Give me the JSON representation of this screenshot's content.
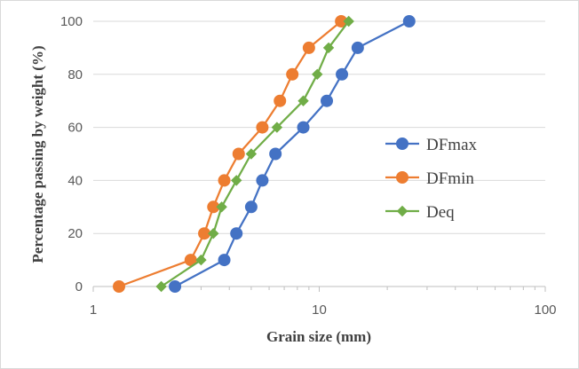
{
  "chart_data": {
    "type": "scatter",
    "x_scale": "log",
    "title": "",
    "xlabel": "Grain size (mm)",
    "ylabel": "Percentage passing by weight (%)",
    "xlim": [
      1,
      100
    ],
    "ylim": [
      0,
      100
    ],
    "x_ticks": [
      1,
      10,
      100
    ],
    "x_tick_labels": [
      "1",
      "10",
      "100"
    ],
    "y_ticks": [
      0,
      20,
      40,
      60,
      80,
      100
    ],
    "y_tick_labels": [
      "0",
      "20",
      "40",
      "60",
      "80",
      "100"
    ],
    "grid": "horizontal",
    "legend_position": "right",
    "series": [
      {
        "name": "DFmax",
        "color": "#4472C4",
        "marker": "circle",
        "x": [
          2.3,
          3.8,
          4.3,
          5.0,
          5.6,
          6.4,
          8.5,
          10.8,
          12.6,
          14.8,
          25.0
        ],
        "y": [
          0,
          10,
          20,
          30,
          40,
          50,
          60,
          70,
          80,
          90,
          100
        ]
      },
      {
        "name": "DFmin",
        "color": "#ED7D31",
        "marker": "circle",
        "x": [
          1.3,
          2.7,
          3.1,
          3.4,
          3.8,
          4.4,
          5.6,
          6.7,
          7.6,
          9.0,
          12.5
        ],
        "y": [
          0,
          10,
          20,
          30,
          40,
          50,
          60,
          70,
          80,
          90,
          100
        ]
      },
      {
        "name": "Deq",
        "color": "#70AD47",
        "marker": "diamond",
        "x": [
          2.0,
          3.0,
          3.4,
          3.7,
          4.3,
          5.0,
          6.5,
          8.5,
          9.8,
          11.0,
          13.5
        ],
        "y": [
          0,
          10,
          20,
          30,
          40,
          50,
          60,
          70,
          80,
          90,
          100
        ]
      }
    ]
  }
}
